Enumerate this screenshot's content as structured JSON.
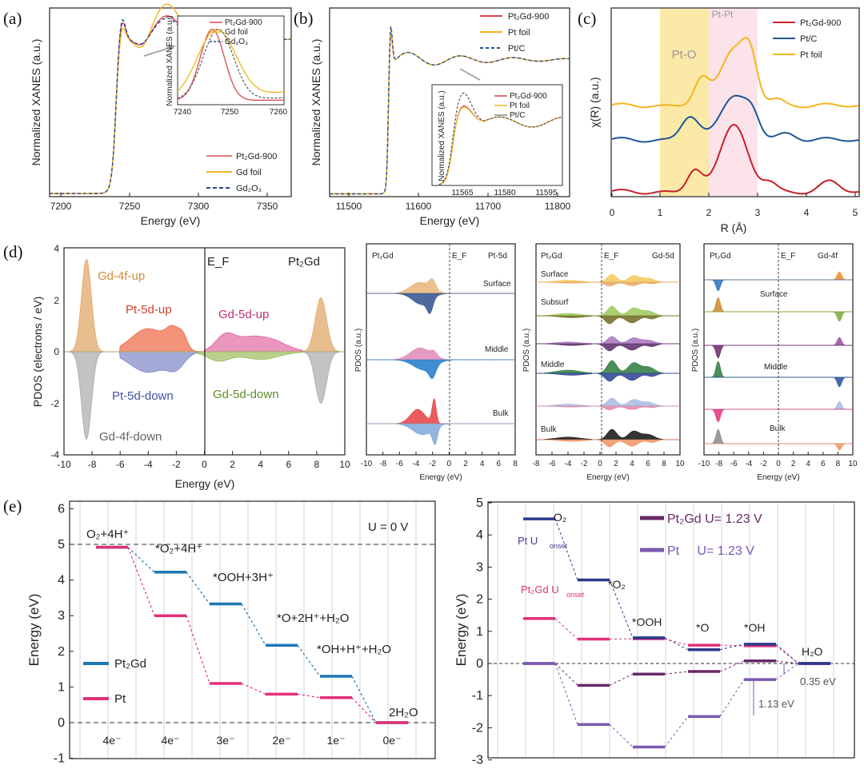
{
  "colors": {
    "pt2gd": "#d9464d",
    "gdfoil": "#f0b51e",
    "gd2o3": "#24468c",
    "ptfoil": "#f3b51e",
    "ptc": "#1e5697",
    "blue_e": "#1f77b4",
    "pink_e": "#e0307a",
    "ptgd_r": "#6a2868",
    "pt_r": "#7a58b0",
    "gd4f": "#e2a86a",
    "gd4fdn": "#a9a9a9",
    "pt5dup": "#ee6f4e",
    "pt5ddn": "#7d88c8",
    "gd5dup": "#df5d9c",
    "gd5ddn": "#9cbd5d"
  },
  "panel_labels": [
    "(a)",
    "(b)",
    "(c)",
    "(d)",
    "(e)"
  ],
  "chart_data": [
    {
      "id": "a",
      "type": "line",
      "title": "",
      "xlabel": "Energy (eV)",
      "ylabel": "Normalized XANES (a.u.)",
      "xlim": [
        7195,
        7370
      ],
      "ylim": [
        0,
        1.2
      ],
      "xticks": [
        "7200",
        "7250",
        "7300",
        "7350"
      ],
      "series": [
        {
          "name": "Pt₂Gd-900",
          "color_key": "pt2gd",
          "dash": false
        },
        {
          "name": "Gd foil",
          "color_key": "gdfoil",
          "dash": false
        },
        {
          "name": "Gd₂O₃",
          "color_key": "gd2o3",
          "dash": true
        }
      ],
      "legend": [
        "Pt₂Gd-900",
        "Gd foil",
        "Gd₂O₃"
      ],
      "inset": {
        "ylabel": "Normalized XANES (a.u.)",
        "xlim": [
          7238,
          7261
        ],
        "xticks": [
          "7240",
          "7250",
          "7260"
        ],
        "legend": [
          "Pt₂Gd-900",
          "Gd foil",
          "Gd₂O₃"
        ]
      }
    },
    {
      "id": "b",
      "type": "line",
      "xlabel": "Energy (eV)",
      "ylabel": "Normalized XANES (a.u.)",
      "xlim": [
        11480,
        11825
      ],
      "xticks": [
        "11500",
        "11600",
        "11700",
        "11800"
      ],
      "series": [
        {
          "name": "Pt₂Gd-900",
          "color_key": "pt2gd"
        },
        {
          "name": "Pt foil",
          "color_key": "ptfoil"
        },
        {
          "name": "Pt/C",
          "color_key": "ptc",
          "dash": true
        }
      ],
      "legend": [
        "Pt₂Gd-900",
        "Pt foil",
        "Pt/C"
      ],
      "inset": {
        "ylabel": "Normalized XANES (a.u.)",
        "xlim": [
          11560,
          11598
        ],
        "xticks": [
          "11565",
          "11580",
          "11595"
        ],
        "legend": [
          "Pt₂Gd-900",
          "Pt foil",
          "Pt/C"
        ]
      }
    },
    {
      "id": "c",
      "type": "line",
      "xlabel": "R (Å)",
      "ylabel": "χ(R) (a.u.)",
      "xlim": [
        0,
        5.1
      ],
      "xticks": [
        "0",
        "1",
        "2",
        "3",
        "4",
        "5"
      ],
      "regions": [
        {
          "label": "Pt-O",
          "from": 1.0,
          "to": 2.0
        },
        {
          "label": "Pt-Pt",
          "from": 2.0,
          "to": 3.0
        }
      ],
      "series": [
        {
          "name": "Pt₂Gd-900",
          "color_key": "pt2gd"
        },
        {
          "name": "Pt/C",
          "color_key": "ptc"
        },
        {
          "name": "Pt foil",
          "color_key": "ptfoil"
        }
      ],
      "legend": [
        "Pt₂Gd-900",
        "Pt/C",
        "Pt foil"
      ]
    },
    {
      "id": "d_main",
      "type": "area",
      "xlabel": "Energy (eV)",
      "ylabel": "PDOS (electrons / eV)",
      "xlim": [
        -10,
        10
      ],
      "ylim": [
        -4,
        4
      ],
      "xticks": [
        "-10",
        "-8",
        "-6",
        "-4",
        "-2",
        "0",
        "2",
        "4",
        "6",
        "8",
        "10"
      ],
      "yticks": [
        "-4",
        "-2",
        "0",
        "2",
        "4"
      ],
      "fermi": "E_F",
      "title": "Pt₂Gd",
      "labels": [
        "Gd-4f-up",
        "Pt-5d-up",
        "Gd-5d-up",
        "Pt-5d-down",
        "Gd-5d-down",
        "Gd-4f-down"
      ],
      "series": [
        {
          "name": "Gd-4f-up",
          "peaks": [
            [
              -8.4,
              3.6
            ],
            [
              8.3,
              2.1
            ]
          ]
        },
        {
          "name": "Gd-4f-down",
          "peaks": [
            [
              -8.4,
              -3.4
            ],
            [
              8.3,
              -2.0
            ]
          ]
        },
        {
          "name": "Pt-5d-up",
          "peak": 1.3
        },
        {
          "name": "Pt-5d-down",
          "peak": -0.9
        },
        {
          "name": "Gd-5d-up",
          "peak": 0.8
        },
        {
          "name": "Gd-5d-down",
          "peak": -0.5
        }
      ]
    },
    {
      "id": "d_pt5d",
      "type": "area",
      "title_left": "Pt₂Gd",
      "fermi": "E_F",
      "title_right": "Pt-5d",
      "ylabel": "PDOS (a.u.)",
      "xlabel": "Energy (eV)",
      "xticks": [
        "-10",
        "-8",
        "-6",
        "-4",
        "-2",
        "0",
        "2",
        "4",
        "6",
        "8"
      ],
      "layers": [
        "Surface",
        "Middle",
        "Bulk"
      ]
    },
    {
      "id": "d_gd5d",
      "type": "area",
      "title_left": "Pt₂Gd",
      "fermi": "E_F",
      "title_right": "Gd-5d",
      "ylabel": "PDOS (a.u.)",
      "xlabel": "Energy (eV)",
      "xticks": [
        "-8",
        "-6",
        "-4",
        "-2",
        "0",
        "2",
        "4",
        "6",
        "8",
        "10"
      ],
      "layers": [
        "Surface",
        "Subsurf",
        "Middle",
        "Bulk"
      ]
    },
    {
      "id": "d_gd4f",
      "type": "area",
      "title_left": "Pt₂Gd",
      "fermi": "E_F",
      "title_right": "Gd-4f",
      "ylabel": "PDOS (a.u.)",
      "xlabel": "Energy (eV)",
      "xticks": [
        "-10",
        "-8",
        "-6",
        "-4",
        "-2",
        "0",
        "2",
        "4",
        "6",
        "8",
        "10"
      ],
      "layers": [
        "Surface",
        "Middle",
        "Bulk"
      ]
    },
    {
      "id": "e_left",
      "type": "line",
      "title": "U = 0 V",
      "ylabel": "Energy (eV)",
      "ylim": [
        -1,
        6
      ],
      "yticks": [
        "-1",
        "0",
        "1",
        "2",
        "3",
        "4",
        "5",
        "6"
      ],
      "categories": [
        "4e⁻",
        "4e⁻",
        "3e⁻",
        "2e⁻",
        "1e⁻",
        "0e⁻"
      ],
      "steps": [
        "O₂+4H⁺",
        "*O₂+4H⁺",
        "*OOH+3H⁺",
        "*O+2H⁺+H₂O",
        "*OH+H⁺+H₂O",
        "2H₂O"
      ],
      "series": [
        {
          "name": "Pt₂Gd",
          "values": [
            4.92,
            4.22,
            3.33,
            2.17,
            1.3,
            0
          ]
        },
        {
          "name": "Pt",
          "values": [
            4.92,
            3.0,
            1.1,
            0.8,
            0.7,
            0
          ]
        }
      ],
      "legend": [
        "Pt₂Gd",
        "Pt"
      ]
    },
    {
      "id": "e_right",
      "type": "line",
      "ylabel": "Energy (eV)",
      "ylim": [
        -3,
        5
      ],
      "yticks": [
        "-3",
        "-2",
        "-1",
        "0",
        "1",
        "2",
        "3",
        "4",
        "5"
      ],
      "steps": [
        "O₂",
        "*O₂",
        "*OOH",
        "*O",
        "*OH",
        "H₂O"
      ],
      "series": [
        {
          "name": "Pt₂Gd U=0",
          "values": [
            0,
            -0.68,
            -0.33,
            -0.25,
            0.08,
            0
          ]
        },
        {
          "name": "Pt₂Gd U= 1.23 V",
          "values": [
            1.4,
            0.76,
            0.77,
            0.57,
            0.55,
            0
          ]
        },
        {
          "name": "Pt U=0",
          "values": [
            0,
            -1.9,
            -2.6,
            -1.65,
            -0.5,
            0
          ]
        },
        {
          "name": "Pt U= 1.23 V",
          "values": [
            4.5,
            2.6,
            0.8,
            0.43,
            0.6,
            0
          ]
        }
      ],
      "legend": [
        "Pt₂Gd U= 1.23 V",
        "Pt     U= 1.23 V"
      ],
      "annotations": [
        "Pt U",
        "onset",
        "Pt₂Gd U",
        "onset",
        "0.35 eV",
        "1.13 eV"
      ]
    }
  ]
}
